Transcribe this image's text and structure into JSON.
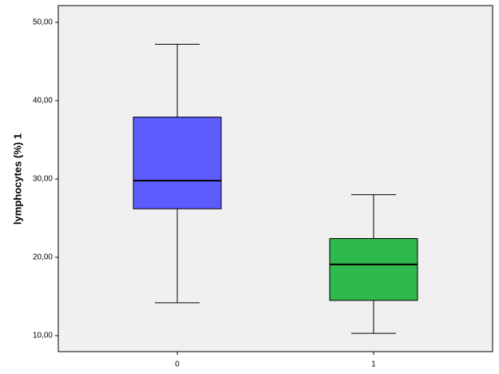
{
  "chart_data": {
    "type": "box",
    "y_label": "lymphocytes (%) 1",
    "categories": [
      "0",
      "1"
    ],
    "boxes": [
      {
        "min": 14.2,
        "q1": 26.2,
        "median": 29.8,
        "q3": 37.9,
        "max": 47.2,
        "color": "#5c5cff"
      },
      {
        "min": 10.3,
        "q1": 14.5,
        "median": 19.1,
        "q3": 22.4,
        "max": 28.0,
        "color": "#2fb84b"
      }
    ],
    "ylim": [
      7.96,
      52.14
    ],
    "yticks": [
      {
        "value": 10,
        "label": "10,00"
      },
      {
        "value": 20,
        "label": "20,00"
      },
      {
        "value": 30,
        "label": "30,00"
      },
      {
        "value": 40,
        "label": "40,00"
      },
      {
        "value": 50,
        "label": "50,00"
      }
    ],
    "plot_background": "#f0f0f0"
  }
}
